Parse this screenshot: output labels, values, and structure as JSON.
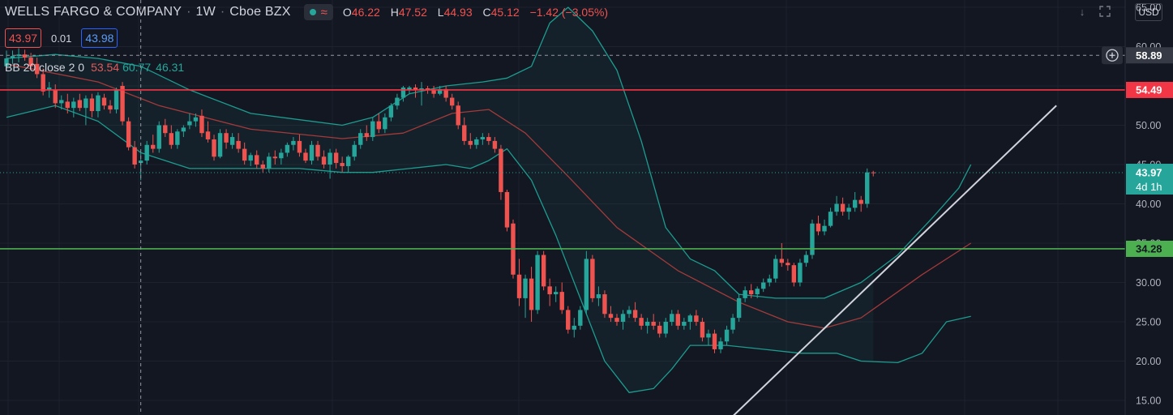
{
  "header": {
    "symbol_name": "WELLS FARGO & COMPANY",
    "interval": "1W",
    "exchange": "Cboe BZX",
    "visibility_icon": "eye-dot-icon",
    "wave_icon": "approx-wave-icon",
    "ohlc": {
      "open_label": "O",
      "open_value": "46.22",
      "high_label": "H",
      "high_value": "47.52",
      "low_label": "L",
      "low_value": "44.93",
      "close_label": "C",
      "close_value": "45.12",
      "change": "−1.42 (−3.05%)"
    },
    "sell_price": "43.97",
    "spread": "0.01",
    "buy_price": "43.98",
    "indicator": {
      "name": "BB 20 close 2 0",
      "basis": "53.54",
      "upper": "60.77",
      "lower": "46.31"
    },
    "icons": [
      "arrow-down-icon",
      "fullscreen-icon"
    ],
    "currency": "USD"
  },
  "colors": {
    "background": "#131722",
    "up": "#26a69a",
    "down": "#ef5350",
    "bb_basis": "#a43a3a",
    "bb_band": "#1c9c8f",
    "resistance": "#f23645",
    "support": "#4caf50",
    "trendline": "#d1d4dc"
  },
  "chart_data": {
    "type": "candlestick",
    "title": "WELLS FARGO & COMPANY · 1W · Cboe BZX",
    "ylim": [
      13,
      67
    ],
    "y_ticks": [
      "65.00",
      "60.00",
      "55.00",
      "50.00",
      "45.00",
      "40.00",
      "35.00",
      "30.00",
      "25.00",
      "20.00",
      "15.00"
    ],
    "grid": true,
    "candles": [
      {
        "o": 57.5,
        "h": 59.5,
        "l": 57.0,
        "c": 58.5
      },
      {
        "o": 58.5,
        "h": 59.5,
        "l": 57.8,
        "c": 58.8
      },
      {
        "o": 58.8,
        "h": 59.8,
        "l": 58.0,
        "c": 59.0
      },
      {
        "o": 59.0,
        "h": 59.6,
        "l": 58.2,
        "c": 58.6
      },
      {
        "o": 58.6,
        "h": 59.2,
        "l": 57.0,
        "c": 57.5
      },
      {
        "o": 57.8,
        "h": 58.6,
        "l": 56.0,
        "c": 56.5
      },
      {
        "o": 56.5,
        "h": 57.2,
        "l": 53.8,
        "c": 54.3
      },
      {
        "o": 54.5,
        "h": 55.5,
        "l": 53.5,
        "c": 54.8
      },
      {
        "o": 54.5,
        "h": 55.2,
        "l": 52.2,
        "c": 52.8
      },
      {
        "o": 52.8,
        "h": 53.8,
        "l": 52.0,
        "c": 53.2
      },
      {
        "o": 53.0,
        "h": 54.0,
        "l": 51.5,
        "c": 52.2
      },
      {
        "o": 52.2,
        "h": 53.5,
        "l": 51.0,
        "c": 53.0
      },
      {
        "o": 53.2,
        "h": 54.0,
        "l": 51.8,
        "c": 52.2
      },
      {
        "o": 52.2,
        "h": 53.8,
        "l": 50.0,
        "c": 53.4
      },
      {
        "o": 53.4,
        "h": 54.0,
        "l": 51.0,
        "c": 51.8
      },
      {
        "o": 51.8,
        "h": 54.2,
        "l": 51.0,
        "c": 53.8
      },
      {
        "o": 53.5,
        "h": 54.0,
        "l": 52.0,
        "c": 52.5
      },
      {
        "o": 52.5,
        "h": 53.2,
        "l": 51.5,
        "c": 52.0
      },
      {
        "o": 52.0,
        "h": 54.8,
        "l": 51.5,
        "c": 54.5
      },
      {
        "o": 55.0,
        "h": 55.5,
        "l": 50.0,
        "c": 50.5
      },
      {
        "o": 50.5,
        "h": 51.0,
        "l": 46.8,
        "c": 47.2
      },
      {
        "o": 47.2,
        "h": 48.0,
        "l": 44.5,
        "c": 45.0
      },
      {
        "o": 45.2,
        "h": 46.5,
        "l": 43.0,
        "c": 45.5
      },
      {
        "o": 45.5,
        "h": 48.0,
        "l": 45.0,
        "c": 47.5
      },
      {
        "o": 47.5,
        "h": 48.8,
        "l": 46.5,
        "c": 47.0
      },
      {
        "o": 47.0,
        "h": 50.5,
        "l": 46.5,
        "c": 50.0
      },
      {
        "o": 50.0,
        "h": 50.8,
        "l": 48.5,
        "c": 49.0
      },
      {
        "o": 49.0,
        "h": 50.0,
        "l": 47.0,
        "c": 47.5
      },
      {
        "o": 47.5,
        "h": 49.5,
        "l": 47.0,
        "c": 49.2
      },
      {
        "o": 49.2,
        "h": 50.0,
        "l": 48.5,
        "c": 49.7
      },
      {
        "o": 50.0,
        "h": 51.5,
        "l": 49.5,
        "c": 50.5
      },
      {
        "o": 50.5,
        "h": 51.5,
        "l": 49.8,
        "c": 51.0
      },
      {
        "o": 51.2,
        "h": 52.0,
        "l": 48.5,
        "c": 49.0
      },
      {
        "o": 49.2,
        "h": 50.5,
        "l": 47.8,
        "c": 48.2
      },
      {
        "o": 48.2,
        "h": 48.8,
        "l": 45.5,
        "c": 46.0
      },
      {
        "o": 46.0,
        "h": 49.5,
        "l": 45.8,
        "c": 49.0
      },
      {
        "o": 49.0,
        "h": 49.5,
        "l": 47.0,
        "c": 47.8
      },
      {
        "o": 47.5,
        "h": 49.0,
        "l": 47.0,
        "c": 48.5
      },
      {
        "o": 48.0,
        "h": 49.0,
        "l": 46.5,
        "c": 47.0
      },
      {
        "o": 47.0,
        "h": 47.8,
        "l": 45.0,
        "c": 45.5
      },
      {
        "o": 45.5,
        "h": 46.5,
        "l": 44.8,
        "c": 46.2
      },
      {
        "o": 46.2,
        "h": 46.8,
        "l": 44.5,
        "c": 45.0
      },
      {
        "o": 45.0,
        "h": 45.5,
        "l": 44.0,
        "c": 44.5
      },
      {
        "o": 44.5,
        "h": 46.5,
        "l": 44.0,
        "c": 46.0
      },
      {
        "o": 46.0,
        "h": 46.8,
        "l": 45.0,
        "c": 45.8
      },
      {
        "o": 45.8,
        "h": 47.0,
        "l": 45.0,
        "c": 46.5
      },
      {
        "o": 46.5,
        "h": 47.8,
        "l": 46.0,
        "c": 47.5
      },
      {
        "o": 47.5,
        "h": 48.5,
        "l": 46.8,
        "c": 48.0
      },
      {
        "o": 48.0,
        "h": 48.8,
        "l": 46.0,
        "c": 46.5
      },
      {
        "o": 46.5,
        "h": 47.0,
        "l": 45.2,
        "c": 45.5
      },
      {
        "o": 45.5,
        "h": 48.0,
        "l": 45.0,
        "c": 47.5
      },
      {
        "o": 47.5,
        "h": 48.0,
        "l": 45.5,
        "c": 46.0
      },
      {
        "o": 46.0,
        "h": 46.8,
        "l": 44.5,
        "c": 45.0
      },
      {
        "o": 45.0,
        "h": 47.0,
        "l": 43.2,
        "c": 46.5
      },
      {
        "o": 46.5,
        "h": 47.0,
        "l": 44.5,
        "c": 45.2
      },
      {
        "o": 45.2,
        "h": 46.0,
        "l": 44.0,
        "c": 44.8
      },
      {
        "o": 44.8,
        "h": 46.2,
        "l": 44.0,
        "c": 46.0
      },
      {
        "o": 46.0,
        "h": 48.0,
        "l": 45.5,
        "c": 47.5
      },
      {
        "o": 47.5,
        "h": 49.5,
        "l": 47.0,
        "c": 49.0
      },
      {
        "o": 49.0,
        "h": 50.0,
        "l": 48.0,
        "c": 48.5
      },
      {
        "o": 48.5,
        "h": 51.0,
        "l": 48.0,
        "c": 50.5
      },
      {
        "o": 50.5,
        "h": 51.5,
        "l": 49.0,
        "c": 49.5
      },
      {
        "o": 49.5,
        "h": 51.5,
        "l": 49.0,
        "c": 51.0
      },
      {
        "o": 51.0,
        "h": 52.8,
        "l": 50.5,
        "c": 52.5
      },
      {
        "o": 52.5,
        "h": 54.0,
        "l": 52.0,
        "c": 53.5
      },
      {
        "o": 53.5,
        "h": 55.0,
        "l": 53.0,
        "c": 54.8
      },
      {
        "o": 54.5,
        "h": 55.0,
        "l": 54.0,
        "c": 54.8
      },
      {
        "o": 54.8,
        "h": 55.2,
        "l": 53.5,
        "c": 54.5
      },
      {
        "o": 54.5,
        "h": 55.5,
        "l": 52.5,
        "c": 54.7
      },
      {
        "o": 54.7,
        "h": 55.0,
        "l": 54.0,
        "c": 54.5
      },
      {
        "o": 54.5,
        "h": 55.0,
        "l": 53.5,
        "c": 54.0
      },
      {
        "o": 54.0,
        "h": 55.0,
        "l": 53.8,
        "c": 54.6
      },
      {
        "o": 54.6,
        "h": 55.0,
        "l": 53.0,
        "c": 53.5
      },
      {
        "o": 53.5,
        "h": 54.0,
        "l": 52.0,
        "c": 52.5
      },
      {
        "o": 52.5,
        "h": 53.0,
        "l": 49.5,
        "c": 50.0
      },
      {
        "o": 50.0,
        "h": 51.0,
        "l": 47.5,
        "c": 48.0
      },
      {
        "o": 48.0,
        "h": 49.0,
        "l": 47.0,
        "c": 47.5
      },
      {
        "o": 47.5,
        "h": 48.5,
        "l": 47.0,
        "c": 48.2
      },
      {
        "o": 48.2,
        "h": 49.0,
        "l": 47.5,
        "c": 48.5
      },
      {
        "o": 48.5,
        "h": 49.0,
        "l": 47.5,
        "c": 48.0
      },
      {
        "o": 48.0,
        "h": 48.5,
        "l": 46.5,
        "c": 47.0
      },
      {
        "o": 47.0,
        "h": 47.5,
        "l": 40.5,
        "c": 41.5
      },
      {
        "o": 41.5,
        "h": 41.8,
        "l": 36.5,
        "c": 37.0
      },
      {
        "o": 37.5,
        "h": 38.0,
        "l": 30.5,
        "c": 31.0
      },
      {
        "o": 31.0,
        "h": 33.0,
        "l": 27.0,
        "c": 28.0
      },
      {
        "o": 28.0,
        "h": 31.0,
        "l": 25.5,
        "c": 30.5
      },
      {
        "o": 30.5,
        "h": 32.0,
        "l": 25.0,
        "c": 26.5
      },
      {
        "o": 26.5,
        "h": 34.0,
        "l": 26.0,
        "c": 33.5
      },
      {
        "o": 33.5,
        "h": 34.0,
        "l": 29.0,
        "c": 29.5
      },
      {
        "o": 29.5,
        "h": 30.5,
        "l": 27.0,
        "c": 28.5
      },
      {
        "o": 28.5,
        "h": 29.5,
        "l": 27.5,
        "c": 28.8
      },
      {
        "o": 28.8,
        "h": 30.0,
        "l": 26.0,
        "c": 26.5
      },
      {
        "o": 26.5,
        "h": 27.0,
        "l": 23.5,
        "c": 24.0
      },
      {
        "o": 24.0,
        "h": 25.5,
        "l": 23.0,
        "c": 24.5
      },
      {
        "o": 24.5,
        "h": 27.0,
        "l": 24.0,
        "c": 26.5
      },
      {
        "o": 26.5,
        "h": 34.0,
        "l": 26.0,
        "c": 33.0
      },
      {
        "o": 33.0,
        "h": 33.5,
        "l": 27.5,
        "c": 28.0
      },
      {
        "o": 28.0,
        "h": 29.5,
        "l": 27.0,
        "c": 28.5
      },
      {
        "o": 28.5,
        "h": 29.0,
        "l": 25.5,
        "c": 26.0
      },
      {
        "o": 26.0,
        "h": 27.0,
        "l": 25.0,
        "c": 25.5
      },
      {
        "o": 25.5,
        "h": 26.0,
        "l": 24.5,
        "c": 25.0
      },
      {
        "o": 25.0,
        "h": 26.5,
        "l": 24.0,
        "c": 26.0
      },
      {
        "o": 26.0,
        "h": 27.0,
        "l": 25.5,
        "c": 26.5
      },
      {
        "o": 26.5,
        "h": 27.5,
        "l": 25.0,
        "c": 25.5
      },
      {
        "o": 25.5,
        "h": 26.0,
        "l": 24.0,
        "c": 24.5
      },
      {
        "o": 24.5,
        "h": 25.5,
        "l": 23.5,
        "c": 25.0
      },
      {
        "o": 25.0,
        "h": 26.0,
        "l": 24.0,
        "c": 24.5
      },
      {
        "o": 24.5,
        "h": 25.0,
        "l": 23.0,
        "c": 23.5
      },
      {
        "o": 23.5,
        "h": 25.5,
        "l": 23.0,
        "c": 25.0
      },
      {
        "o": 25.0,
        "h": 26.5,
        "l": 24.5,
        "c": 26.0
      },
      {
        "o": 26.0,
        "h": 26.5,
        "l": 24.0,
        "c": 24.5
      },
      {
        "o": 24.5,
        "h": 25.5,
        "l": 24.0,
        "c": 25.0
      },
      {
        "o": 25.0,
        "h": 26.0,
        "l": 24.0,
        "c": 25.8
      },
      {
        "o": 25.8,
        "h": 26.5,
        "l": 24.5,
        "c": 25.0
      },
      {
        "o": 25.0,
        "h": 25.5,
        "l": 22.5,
        "c": 23.0
      },
      {
        "o": 23.0,
        "h": 24.0,
        "l": 22.0,
        "c": 23.5
      },
      {
        "o": 23.5,
        "h": 24.0,
        "l": 21.0,
        "c": 21.5
      },
      {
        "o": 21.5,
        "h": 23.0,
        "l": 21.0,
        "c": 22.5
      },
      {
        "o": 22.5,
        "h": 24.5,
        "l": 22.0,
        "c": 24.0
      },
      {
        "o": 24.0,
        "h": 26.0,
        "l": 23.5,
        "c": 25.5
      },
      {
        "o": 25.5,
        "h": 28.5,
        "l": 25.0,
        "c": 28.0
      },
      {
        "o": 28.0,
        "h": 29.5,
        "l": 27.5,
        "c": 29.0
      },
      {
        "o": 29.0,
        "h": 29.8,
        "l": 28.0,
        "c": 28.5
      },
      {
        "o": 28.5,
        "h": 29.5,
        "l": 28.0,
        "c": 29.2
      },
      {
        "o": 29.2,
        "h": 30.5,
        "l": 28.8,
        "c": 30.0
      },
      {
        "o": 30.0,
        "h": 31.0,
        "l": 29.5,
        "c": 30.5
      },
      {
        "o": 30.5,
        "h": 33.5,
        "l": 30.0,
        "c": 33.0
      },
      {
        "o": 33.0,
        "h": 35.0,
        "l": 32.0,
        "c": 32.5
      },
      {
        "o": 32.5,
        "h": 33.0,
        "l": 31.5,
        "c": 32.2
      },
      {
        "o": 32.2,
        "h": 32.5,
        "l": 29.5,
        "c": 30.0
      },
      {
        "o": 30.0,
        "h": 33.0,
        "l": 29.5,
        "c": 32.5
      },
      {
        "o": 32.5,
        "h": 34.0,
        "l": 32.0,
        "c": 33.5
      },
      {
        "o": 33.5,
        "h": 38.0,
        "l": 33.0,
        "c": 37.5
      },
      {
        "o": 37.5,
        "h": 38.5,
        "l": 36.0,
        "c": 36.5
      },
      {
        "o": 36.5,
        "h": 38.0,
        "l": 36.0,
        "c": 37.2
      },
      {
        "o": 37.2,
        "h": 39.5,
        "l": 37.0,
        "c": 39.0
      },
      {
        "o": 39.0,
        "h": 41.0,
        "l": 38.5,
        "c": 40.0
      },
      {
        "o": 40.0,
        "h": 40.8,
        "l": 38.5,
        "c": 39.0
      },
      {
        "o": 39.0,
        "h": 40.0,
        "l": 38.0,
        "c": 39.5
      },
      {
        "o": 39.5,
        "h": 41.5,
        "l": 39.0,
        "c": 40.5
      },
      {
        "o": 40.5,
        "h": 41.0,
        "l": 39.0,
        "c": 40.0
      },
      {
        "o": 40.0,
        "h": 44.5,
        "l": 39.5,
        "c": 44.0
      },
      {
        "o": 44.0,
        "h": 44.2,
        "l": 43.5,
        "c": 43.97
      }
    ],
    "bb_basis": [
      [
        0,
        57.8
      ],
      [
        15,
        55.5
      ],
      [
        25,
        52.5
      ],
      [
        40,
        49.5
      ],
      [
        55,
        48.3
      ],
      [
        65,
        49.0
      ],
      [
        73,
        51.5
      ],
      [
        79,
        52.0
      ],
      [
        85,
        49.0
      ],
      [
        92,
        43.5
      ],
      [
        100,
        37.0
      ],
      [
        110,
        31.5
      ],
      [
        120,
        27.5
      ],
      [
        128,
        25.0
      ],
      [
        134,
        24.2
      ],
      [
        140,
        25.5
      ],
      [
        150,
        31.0
      ],
      [
        158,
        35.0
      ]
    ],
    "bb_upper": [
      [
        0,
        58.5
      ],
      [
        8,
        59.0
      ],
      [
        15,
        58.5
      ],
      [
        22,
        57.5
      ],
      [
        30,
        54.5
      ],
      [
        40,
        51.5
      ],
      [
        55,
        50.0
      ],
      [
        60,
        51.0
      ],
      [
        66,
        54.0
      ],
      [
        72,
        55.0
      ],
      [
        78,
        55.5
      ],
      [
        82,
        56.0
      ],
      [
        86,
        57.5
      ],
      [
        89,
        63.0
      ],
      [
        92,
        65.0
      ],
      [
        96,
        62.0
      ],
      [
        100,
        57.0
      ],
      [
        104,
        48.0
      ],
      [
        108,
        37.0
      ],
      [
        112,
        33.0
      ],
      [
        116,
        31.5
      ],
      [
        120,
        28.5
      ],
      [
        126,
        28.0
      ],
      [
        134,
        28.0
      ],
      [
        140,
        30.0
      ],
      [
        146,
        33.5
      ],
      [
        152,
        38.5
      ],
      [
        156,
        42.0
      ],
      [
        158,
        45.0
      ]
    ],
    "bb_lower": [
      [
        0,
        51.0
      ],
      [
        8,
        52.5
      ],
      [
        15,
        50.5
      ],
      [
        22,
        46.5
      ],
      [
        30,
        44.5
      ],
      [
        40,
        44.5
      ],
      [
        48,
        44.5
      ],
      [
        55,
        44.0
      ],
      [
        60,
        44.0
      ],
      [
        66,
        44.5
      ],
      [
        72,
        45.0
      ],
      [
        76,
        44.5
      ],
      [
        79,
        45.5
      ],
      [
        82,
        47.0
      ],
      [
        86,
        43.0
      ],
      [
        90,
        36.0
      ],
      [
        94,
        28.0
      ],
      [
        98,
        20.0
      ],
      [
        102,
        16.0
      ],
      [
        106,
        16.5
      ],
      [
        109,
        19.0
      ],
      [
        112,
        22.0
      ],
      [
        118,
        22.0
      ],
      [
        124,
        21.5
      ],
      [
        130,
        21.0
      ],
      [
        136,
        21.0
      ],
      [
        140,
        20.0
      ],
      [
        146,
        19.8
      ],
      [
        150,
        21.0
      ],
      [
        154,
        25.0
      ],
      [
        158,
        25.7
      ]
    ],
    "horizontal_lines": [
      {
        "name": "resistance",
        "value": 54.49,
        "label": "54.49"
      },
      {
        "name": "support",
        "value": 34.28,
        "label": "34.28"
      },
      {
        "name": "crosshair-price",
        "value": 58.89,
        "label": "58.89"
      },
      {
        "name": "last-price",
        "value": 43.97,
        "label": "43.97",
        "countdown": "4d 1h"
      }
    ],
    "trendline": [
      {
        "bar": 119,
        "price": 13.0
      },
      {
        "bar": 172,
        "price": 52.5
      }
    ],
    "crosshair_bar": 22
  }
}
